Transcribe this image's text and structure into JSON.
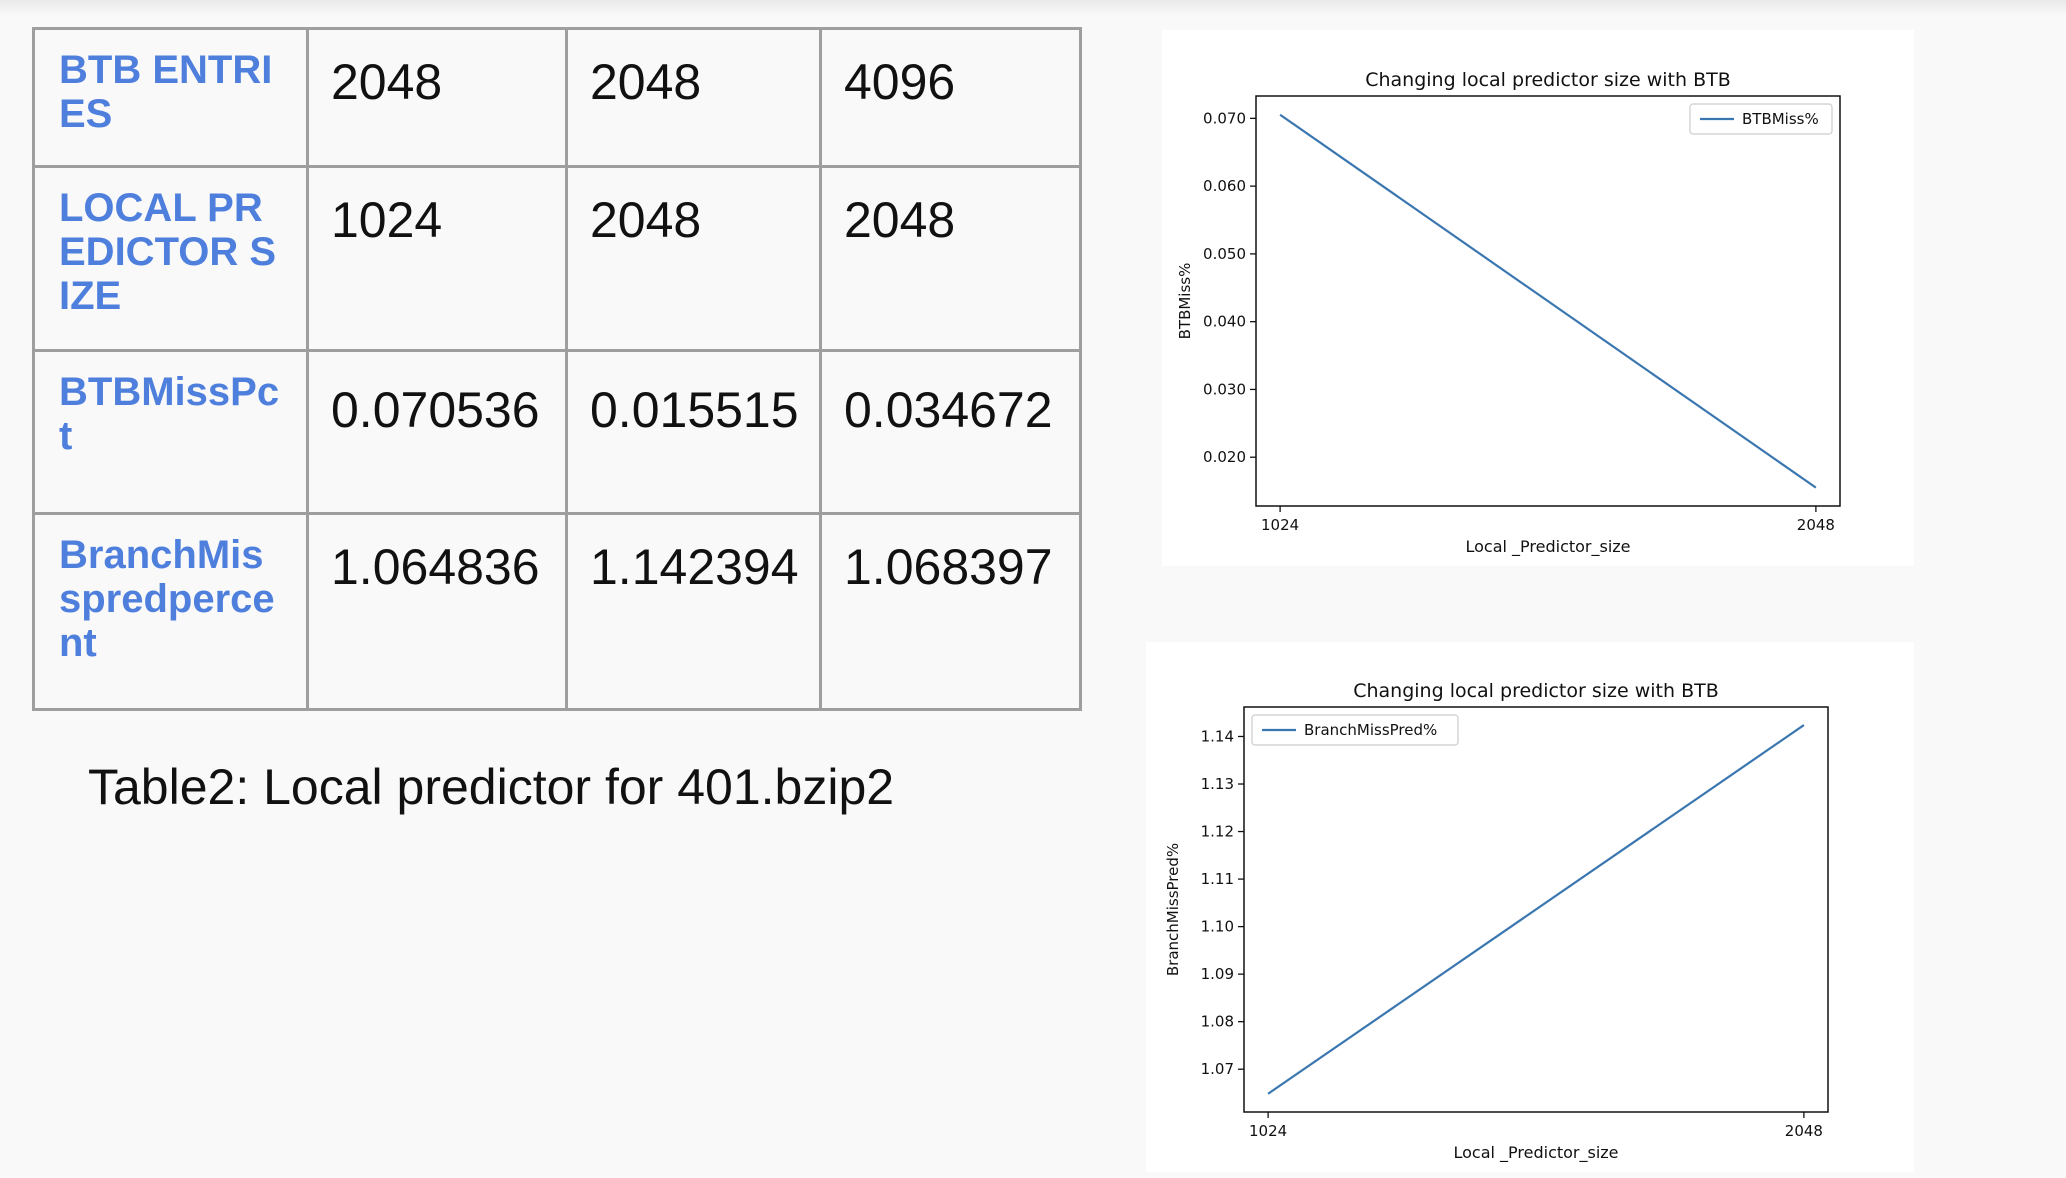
{
  "table": {
    "rows": [
      {
        "label": "BTB ENTRIES",
        "values": [
          "2048",
          "2048",
          "4096"
        ]
      },
      {
        "label": "LOCAL PREDICTOR SIZE",
        "values": [
          "1024",
          "2048",
          "2048"
        ]
      },
      {
        "label": "BTBMissPct",
        "values": [
          "0.070536",
          "0.015515",
          "0.034672"
        ]
      },
      {
        "label": "BranchMisspredpercent",
        "values": [
          "1.064836",
          "1.142394",
          "1.068397"
        ]
      }
    ]
  },
  "caption": "Table2: Local predictor for 401.bzip2",
  "chart_data": [
    {
      "type": "line",
      "title": "Changing local predictor size with BTB",
      "xlabel": "Local _Predictor_size",
      "ylabel": "BTBMiss%",
      "x": [
        1024,
        2048
      ],
      "series": [
        {
          "name": "BTBMiss%",
          "values": [
            0.070536,
            0.015515
          ],
          "color": "#3a76af"
        }
      ],
      "yticks": [
        0.02,
        0.03,
        0.04,
        0.05,
        0.06,
        0.07
      ],
      "ylim": [
        0.0128,
        0.0733
      ],
      "legend": "top-right",
      "grid": false
    },
    {
      "type": "line",
      "title": "Changing local predictor size with BTB",
      "xlabel": "Local _Predictor_size",
      "ylabel": "BranchMissPred%",
      "x": [
        1024,
        2048
      ],
      "series": [
        {
          "name": "BranchMissPred%",
          "values": [
            1.064836,
            1.142394
          ],
          "color": "#3a76af"
        }
      ],
      "yticks": [
        1.07,
        1.08,
        1.09,
        1.1,
        1.11,
        1.12,
        1.13,
        1.14
      ],
      "ylim": [
        1.061,
        1.1462
      ],
      "legend": "top-left",
      "grid": false
    }
  ]
}
